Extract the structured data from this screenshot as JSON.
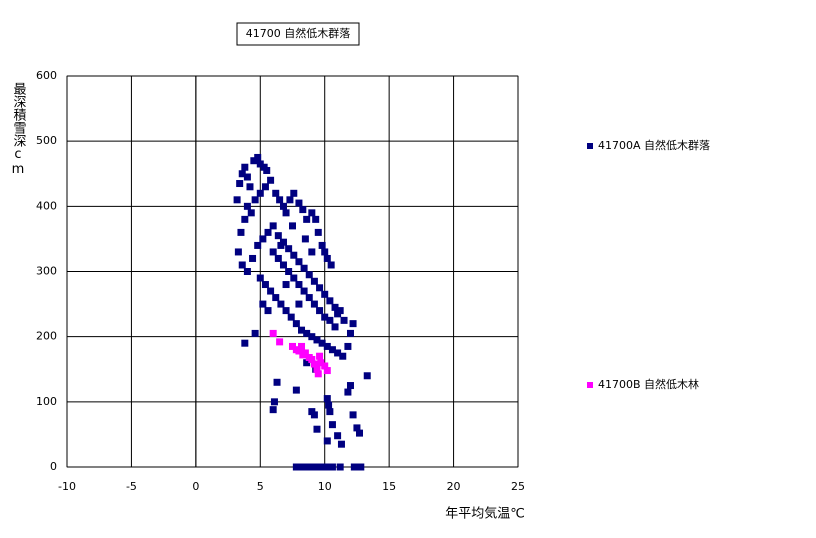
{
  "chart_data": {
    "type": "scatter",
    "title": "41700 自然低木群落",
    "x_label": "年平均気温℃",
    "y_label": "最深積雪深cm",
    "xlim": [
      -10,
      25
    ],
    "xticks": [
      -10,
      -5,
      0,
      5,
      10,
      15,
      20,
      25
    ],
    "ylim": [
      0,
      600
    ],
    "yticks": [
      0,
      100,
      200,
      300,
      400,
      500,
      600
    ],
    "grid": true,
    "series": [
      {
        "name": "41700A 自然低木群落",
        "color": "#000080",
        "x": [
          3.2,
          3.4,
          3.6,
          3.8,
          4,
          4.2,
          4.5,
          4.8,
          5,
          5.3,
          5.5,
          3.5,
          3.8,
          4,
          4.3,
          4.6,
          5,
          5.4,
          5.8,
          6.2,
          6.5,
          6.8,
          7,
          7.3,
          7.6,
          8,
          8.3,
          8.6,
          9,
          9.3,
          9.5,
          9.8,
          10,
          10.2,
          10.5,
          3.3,
          3.6,
          4,
          4.4,
          4.8,
          5.2,
          5.6,
          6,
          6.4,
          6.8,
          7.2,
          7.6,
          8,
          8.4,
          8.8,
          9.2,
          9.6,
          10,
          10.4,
          10.8,
          11,
          5,
          5.4,
          5.8,
          6.2,
          6.6,
          7,
          7.4,
          7.8,
          8.2,
          8.6,
          9,
          9.4,
          9.8,
          10.2,
          10.6,
          11,
          11.4,
          11.8,
          12,
          12.2,
          11.5,
          11.2,
          10.8,
          10.4,
          10,
          9.6,
          9.2,
          8.8,
          8.4,
          8,
          7.6,
          7.2,
          6.8,
          6.4,
          6,
          5.6,
          5.2,
          4.6,
          3.8,
          6.1,
          6,
          6.3,
          7.8,
          9,
          9.2,
          9.4,
          10.2,
          10.3,
          10.4,
          10.6,
          11,
          11.3,
          11.8,
          12,
          12.2,
          12.5,
          12.7,
          13.3,
          10.2,
          9.3,
          8.6,
          7.8,
          8.2,
          8.6,
          9,
          9.4,
          9.8,
          10.2,
          10.6,
          11.2,
          12.3,
          12.8,
          6.6,
          7.5,
          8.5,
          9,
          8,
          7
        ],
        "values": [
          410,
          435,
          450,
          460,
          445,
          430,
          470,
          475,
          465,
          460,
          455,
          360,
          380,
          400,
          390,
          410,
          420,
          430,
          440,
          420,
          410,
          400,
          390,
          410,
          420,
          405,
          395,
          380,
          390,
          380,
          360,
          340,
          330,
          320,
          310,
          330,
          310,
          300,
          320,
          340,
          350,
          360,
          370,
          355,
          345,
          335,
          325,
          315,
          305,
          295,
          285,
          275,
          265,
          255,
          245,
          235,
          290,
          280,
          270,
          260,
          250,
          240,
          230,
          220,
          210,
          205,
          200,
          195,
          190,
          185,
          180,
          175,
          170,
          185,
          205,
          220,
          225,
          240,
          215,
          225,
          230,
          240,
          250,
          260,
          270,
          280,
          290,
          300,
          310,
          320,
          330,
          240,
          250,
          205,
          190,
          100,
          88,
          130,
          118,
          85,
          80,
          58,
          105,
          95,
          85,
          65,
          48,
          35,
          115,
          125,
          80,
          60,
          52,
          140,
          40,
          150,
          160,
          0,
          0,
          0,
          0,
          0,
          0,
          0,
          0,
          0,
          0,
          0,
          340,
          370,
          350,
          330,
          250,
          280
        ]
      },
      {
        "name": "41700B 自然低木林",
        "color": "#ff00ff",
        "x": [
          6,
          6.5,
          7.5,
          7.8,
          8,
          8.3,
          8.5,
          8.8,
          9,
          9.2,
          9.4,
          9.5,
          9.7,
          10,
          10.2,
          8.2,
          9.6
        ],
        "values": [
          205,
          192,
          185,
          180,
          178,
          172,
          175,
          168,
          165,
          158,
          150,
          143,
          160,
          155,
          148,
          185,
          170
        ]
      }
    ]
  }
}
